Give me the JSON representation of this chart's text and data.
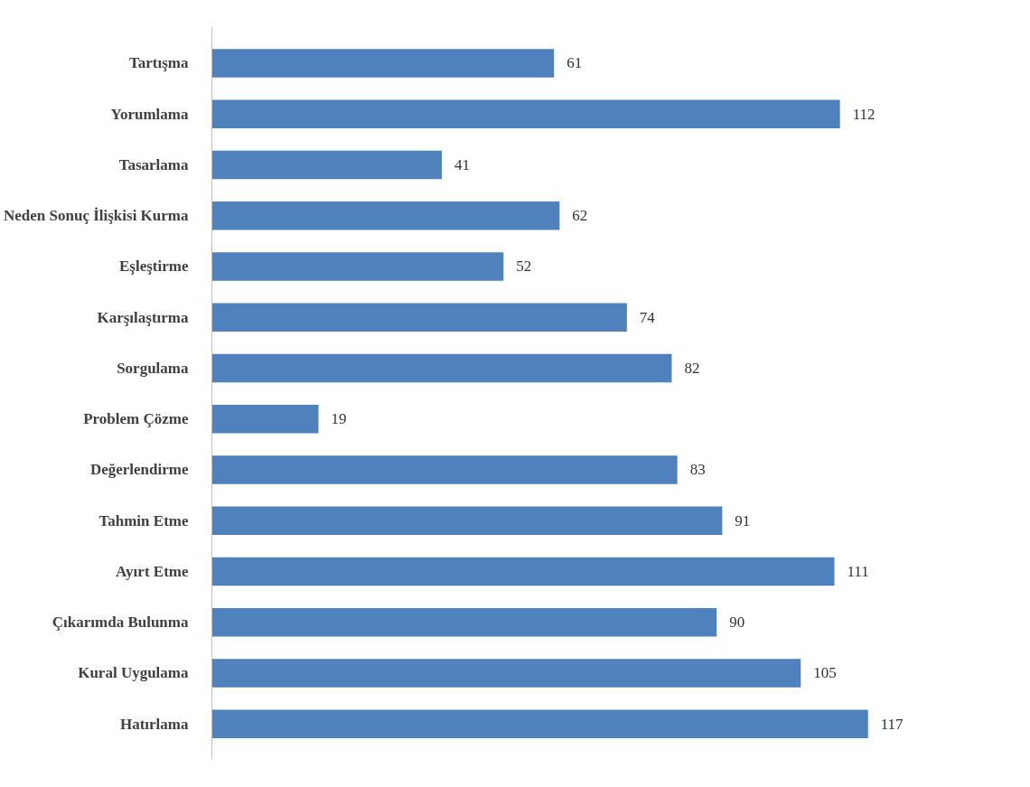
{
  "chart_data": {
    "type": "bar",
    "orientation": "horizontal",
    "categories": [
      "Tartışma",
      "Yorumlama",
      "Tasarlama",
      "Neden Sonuç İlişkisi Kurma",
      "Eşleştirme",
      "Karşılaştırma",
      "Sorgulama",
      "Problem Çözme",
      "Değerlendirme",
      "Tahmin Etme",
      "Ayırt Etme",
      "Çıkarımda Bulunma",
      "Kural Uygulama",
      "Hatırlama"
    ],
    "values": [
      61,
      112,
      41,
      62,
      52,
      74,
      82,
      19,
      83,
      91,
      111,
      90,
      105,
      117
    ],
    "color": "#4f81bd",
    "data_labels": true,
    "grid": false,
    "tick_labels": "y"
  }
}
